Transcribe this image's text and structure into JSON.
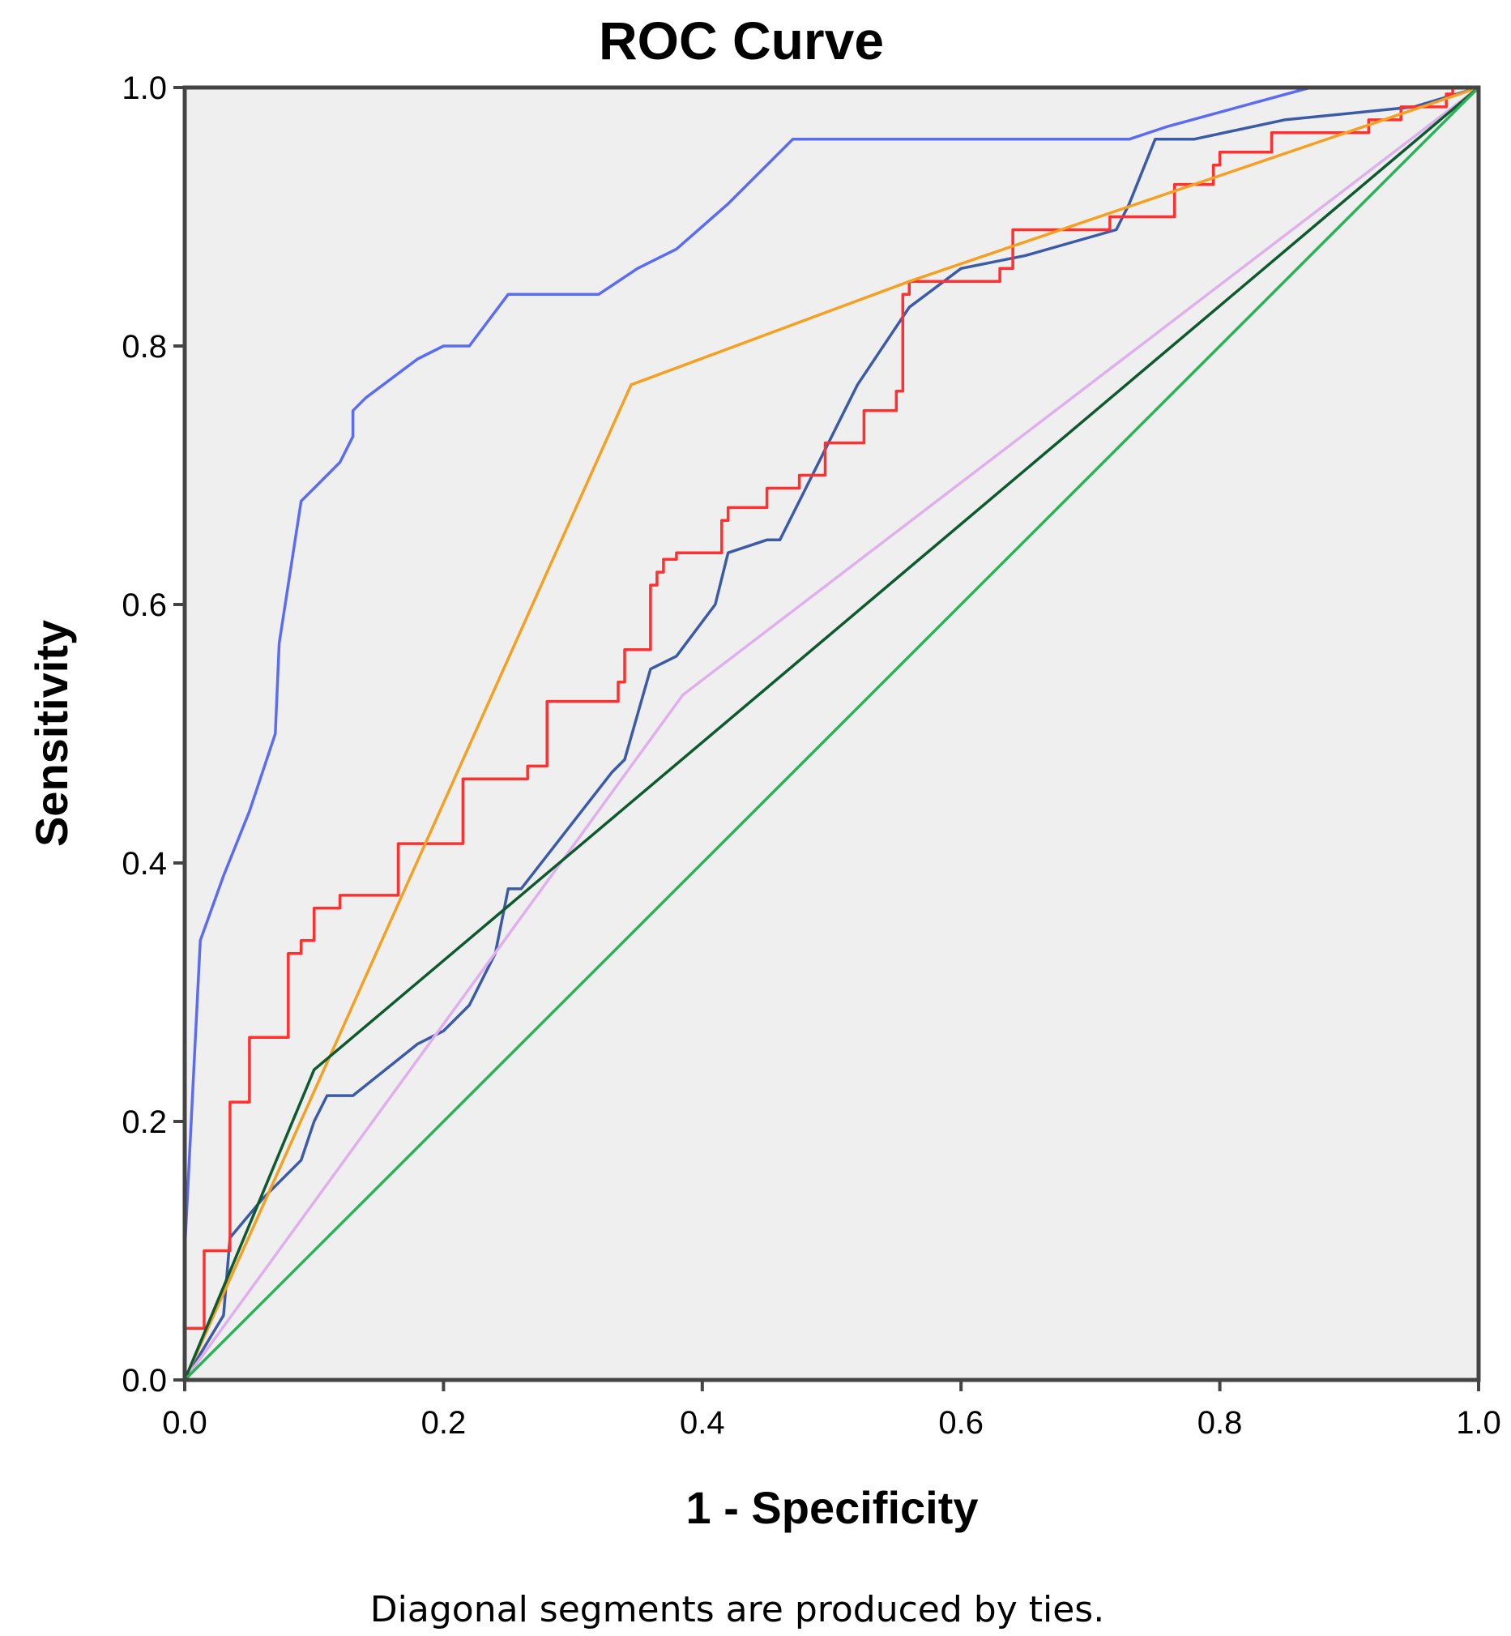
{
  "chart_data": {
    "type": "line",
    "title": "ROC Curve",
    "xlabel": "1 - Specificity",
    "ylabel": "Sensitivity",
    "xlim": [
      0,
      1
    ],
    "ylim": [
      0,
      1
    ],
    "x_ticks": [
      "0.0",
      "0.2",
      "0.4",
      "0.6",
      "0.8",
      "1.0"
    ],
    "y_ticks": [
      "0.0",
      "0.2",
      "0.4",
      "0.6",
      "0.8",
      "1.0"
    ],
    "footnote": "Diagonal segments are produced by ties.",
    "grid": false,
    "legend": "none",
    "series": [
      {
        "name": "curve-light-blue",
        "color": "#5b6cf0",
        "points": [
          [
            0,
            0
          ],
          [
            0.0,
            0.1
          ],
          [
            0.012,
            0.34
          ],
          [
            0.03,
            0.39
          ],
          [
            0.05,
            0.44
          ],
          [
            0.07,
            0.5
          ],
          [
            0.073,
            0.57
          ],
          [
            0.09,
            0.68
          ],
          [
            0.1,
            0.69
          ],
          [
            0.12,
            0.71
          ],
          [
            0.13,
            0.73
          ],
          [
            0.13,
            0.75
          ],
          [
            0.14,
            0.76
          ],
          [
            0.18,
            0.79
          ],
          [
            0.2,
            0.8
          ],
          [
            0.22,
            0.8
          ],
          [
            0.25,
            0.84
          ],
          [
            0.32,
            0.84
          ],
          [
            0.35,
            0.86
          ],
          [
            0.36,
            0.865
          ],
          [
            0.38,
            0.875
          ],
          [
            0.42,
            0.91
          ],
          [
            0.47,
            0.96
          ],
          [
            0.73,
            0.96
          ],
          [
            0.76,
            0.97
          ],
          [
            0.87,
            1.0
          ],
          [
            1.0,
            1.0
          ]
        ]
      },
      {
        "name": "curve-dark-blue",
        "color": "#3c5ba6",
        "points": [
          [
            0,
            0
          ],
          [
            0.03,
            0.05
          ],
          [
            0.035,
            0.11
          ],
          [
            0.06,
            0.14
          ],
          [
            0.09,
            0.17
          ],
          [
            0.1,
            0.2
          ],
          [
            0.11,
            0.22
          ],
          [
            0.13,
            0.22
          ],
          [
            0.18,
            0.26
          ],
          [
            0.2,
            0.27
          ],
          [
            0.22,
            0.29
          ],
          [
            0.24,
            0.33
          ],
          [
            0.25,
            0.38
          ],
          [
            0.26,
            0.38
          ],
          [
            0.33,
            0.47
          ],
          [
            0.34,
            0.48
          ],
          [
            0.36,
            0.55
          ],
          [
            0.38,
            0.56
          ],
          [
            0.41,
            0.6
          ],
          [
            0.42,
            0.64
          ],
          [
            0.45,
            0.65
          ],
          [
            0.46,
            0.65
          ],
          [
            0.48,
            0.69
          ],
          [
            0.52,
            0.77
          ],
          [
            0.56,
            0.83
          ],
          [
            0.6,
            0.86
          ],
          [
            0.65,
            0.87
          ],
          [
            0.72,
            0.89
          ],
          [
            0.73,
            0.91
          ],
          [
            0.75,
            0.96
          ],
          [
            0.78,
            0.96
          ],
          [
            0.85,
            0.975
          ],
          [
            0.95,
            0.985
          ],
          [
            1.0,
            1.0
          ]
        ]
      },
      {
        "name": "curve-red",
        "color": "#ff3030",
        "points": [
          [
            0,
            0
          ],
          [
            0,
            0.04
          ],
          [
            0.015,
            0.04
          ],
          [
            0.015,
            0.1
          ],
          [
            0.035,
            0.1
          ],
          [
            0.035,
            0.215
          ],
          [
            0.05,
            0.215
          ],
          [
            0.05,
            0.265
          ],
          [
            0.08,
            0.265
          ],
          [
            0.08,
            0.33
          ],
          [
            0.09,
            0.33
          ],
          [
            0.09,
            0.34
          ],
          [
            0.1,
            0.34
          ],
          [
            0.1,
            0.365
          ],
          [
            0.12,
            0.365
          ],
          [
            0.12,
            0.375
          ],
          [
            0.165,
            0.375
          ],
          [
            0.165,
            0.415
          ],
          [
            0.215,
            0.415
          ],
          [
            0.215,
            0.465
          ],
          [
            0.265,
            0.465
          ],
          [
            0.265,
            0.475
          ],
          [
            0.28,
            0.475
          ],
          [
            0.28,
            0.525
          ],
          [
            0.335,
            0.525
          ],
          [
            0.335,
            0.54
          ],
          [
            0.34,
            0.54
          ],
          [
            0.34,
            0.565
          ],
          [
            0.36,
            0.565
          ],
          [
            0.36,
            0.615
          ],
          [
            0.365,
            0.615
          ],
          [
            0.365,
            0.625
          ],
          [
            0.37,
            0.625
          ],
          [
            0.37,
            0.635
          ],
          [
            0.38,
            0.635
          ],
          [
            0.38,
            0.64
          ],
          [
            0.415,
            0.64
          ],
          [
            0.415,
            0.665
          ],
          [
            0.42,
            0.665
          ],
          [
            0.42,
            0.675
          ],
          [
            0.45,
            0.675
          ],
          [
            0.45,
            0.69
          ],
          [
            0.475,
            0.69
          ],
          [
            0.475,
            0.7
          ],
          [
            0.495,
            0.7
          ],
          [
            0.495,
            0.725
          ],
          [
            0.525,
            0.725
          ],
          [
            0.525,
            0.75
          ],
          [
            0.55,
            0.75
          ],
          [
            0.55,
            0.765
          ],
          [
            0.555,
            0.765
          ],
          [
            0.555,
            0.84
          ],
          [
            0.56,
            0.84
          ],
          [
            0.56,
            0.85
          ],
          [
            0.63,
            0.85
          ],
          [
            0.63,
            0.86
          ],
          [
            0.64,
            0.86
          ],
          [
            0.64,
            0.89
          ],
          [
            0.715,
            0.89
          ],
          [
            0.715,
            0.9
          ],
          [
            0.765,
            0.9
          ],
          [
            0.765,
            0.925
          ],
          [
            0.795,
            0.925
          ],
          [
            0.795,
            0.94
          ],
          [
            0.8,
            0.94
          ],
          [
            0.8,
            0.95
          ],
          [
            0.84,
            0.95
          ],
          [
            0.84,
            0.965
          ],
          [
            0.915,
            0.965
          ],
          [
            0.915,
            0.975
          ],
          [
            0.94,
            0.975
          ],
          [
            0.94,
            0.985
          ],
          [
            0.975,
            0.985
          ],
          [
            0.975,
            0.995
          ],
          [
            0.98,
            0.995
          ],
          [
            0.98,
            1.0
          ],
          [
            1.0,
            1.0
          ]
        ]
      },
      {
        "name": "curve-orange",
        "color": "#f5a020",
        "points": [
          [
            0,
            0
          ],
          [
            0.345,
            0.77
          ],
          [
            0.56,
            0.85
          ],
          [
            1.0,
            1.0
          ]
        ]
      },
      {
        "name": "curve-pink",
        "color": "#e0b0ee",
        "points": [
          [
            0,
            0
          ],
          [
            0.385,
            0.53
          ],
          [
            1.0,
            1.0
          ]
        ]
      },
      {
        "name": "curve-dark-green",
        "color": "#0c5a2e",
        "points": [
          [
            0,
            0
          ],
          [
            0.1,
            0.24
          ],
          [
            1.0,
            1.0
          ]
        ]
      },
      {
        "name": "reference-line",
        "color": "#28b456",
        "points": [
          [
            0,
            0
          ],
          [
            1.0,
            1.0
          ]
        ]
      }
    ]
  },
  "colors": {
    "plot_background": "#efefef",
    "frame": "#444444"
  }
}
